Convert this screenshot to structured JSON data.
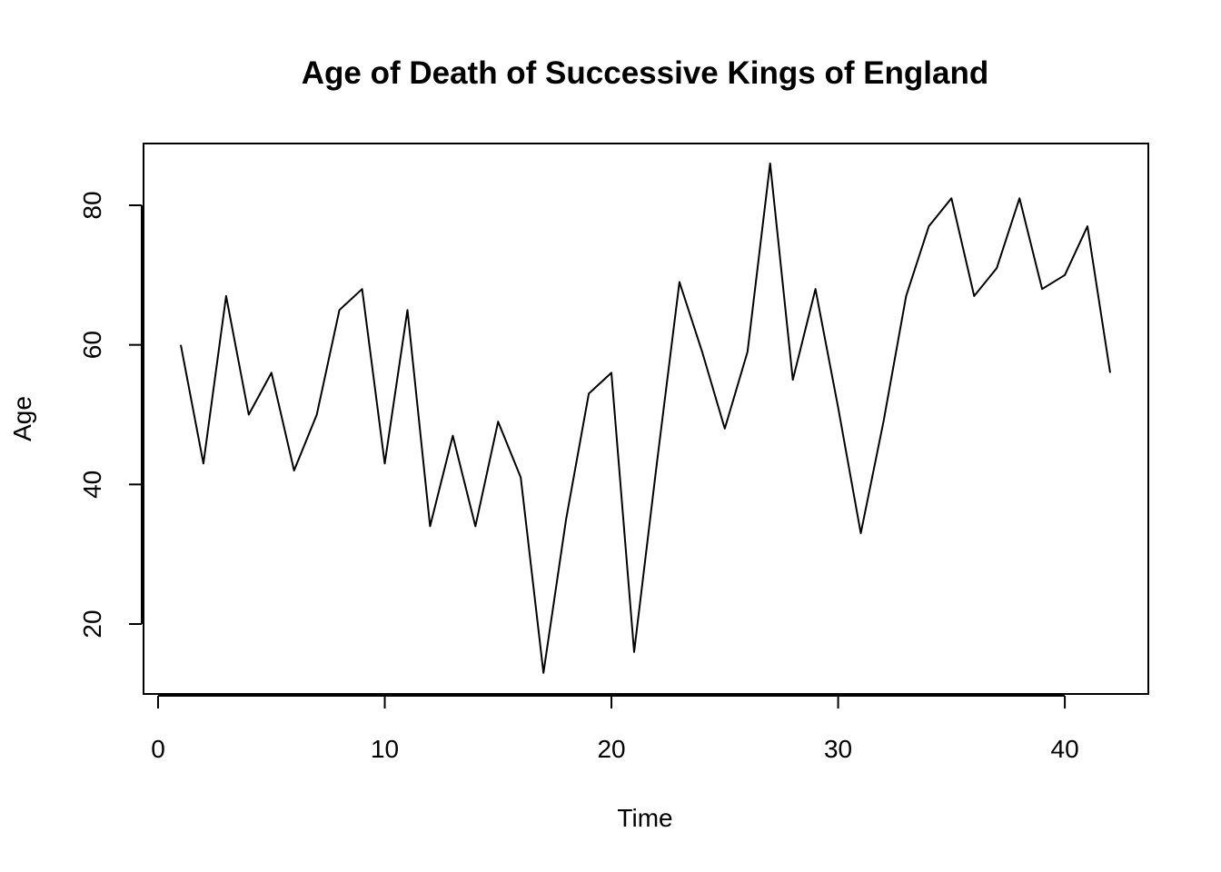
{
  "chart_data": {
    "type": "line",
    "title": "Age of Death of Successive Kings of England",
    "xlabel": "Time",
    "ylabel": "Age",
    "xlim": [
      0.0,
      42
    ],
    "ylim": [
      10,
      88
    ],
    "x_ticks": [
      0,
      10,
      20,
      30,
      40
    ],
    "y_ticks": [
      20,
      40,
      60,
      80
    ],
    "grid": false,
    "colors": {
      "line": "#000000",
      "frame": "#000000"
    },
    "x": [
      1,
      2,
      3,
      4,
      5,
      6,
      7,
      8,
      9,
      10,
      11,
      12,
      13,
      14,
      15,
      16,
      17,
      18,
      19,
      20,
      21,
      22,
      23,
      24,
      25,
      26,
      27,
      28,
      29,
      30,
      31,
      32,
      33,
      34,
      35,
      36,
      37,
      38,
      39,
      40,
      41,
      42
    ],
    "series": [
      {
        "values": [
          60,
          43,
          67,
          50,
          56,
          42,
          50,
          65,
          68,
          43,
          65,
          34,
          47,
          34,
          49,
          41,
          13,
          35,
          53,
          56,
          16,
          43,
          69,
          59,
          48,
          59,
          86,
          55,
          68,
          51,
          33,
          49,
          67,
          77,
          81,
          67,
          71,
          81,
          68,
          70,
          77,
          56
        ]
      }
    ]
  }
}
